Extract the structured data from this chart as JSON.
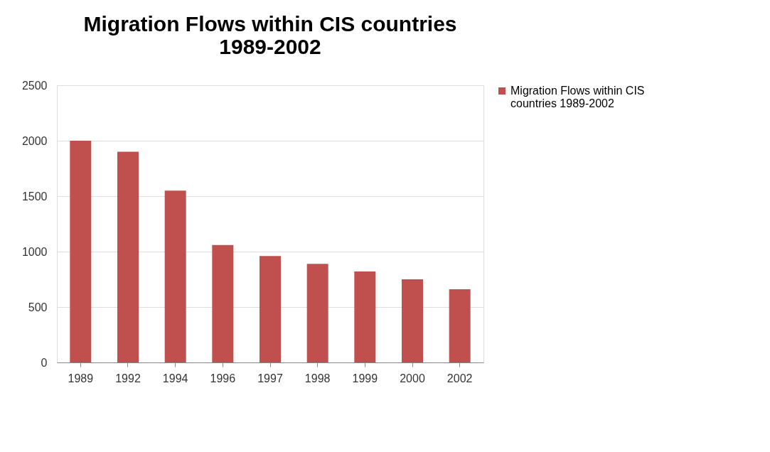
{
  "chart_data": {
    "type": "bar",
    "title": "Migration Flows within CIS countries 1989-2002",
    "categories": [
      "1989",
      "1992",
      "1994",
      "1996",
      "1997",
      "1998",
      "1999",
      "2000",
      "2002"
    ],
    "series": [
      {
        "name": "Migration Flows within CIS countries 1989-2002",
        "color": "#c0504d",
        "values": [
          2000,
          1900,
          1550,
          1060,
          960,
          890,
          820,
          750,
          660
        ]
      }
    ],
    "ylim": [
      0,
      2500
    ],
    "yticks": [
      0,
      500,
      1000,
      1500,
      2000,
      2500
    ],
    "grid": "y",
    "legend": "right"
  }
}
